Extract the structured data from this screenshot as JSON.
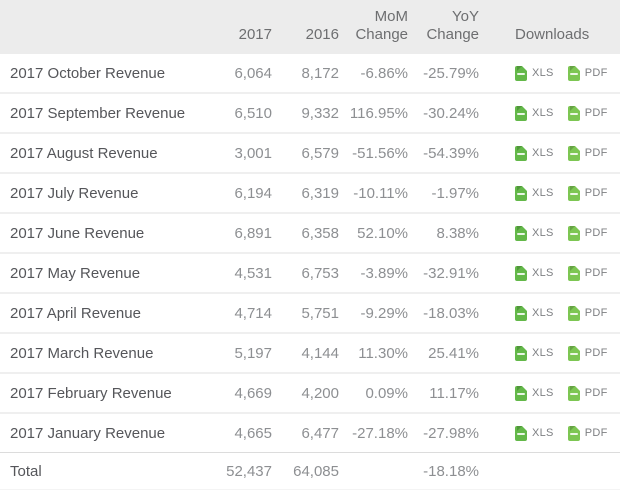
{
  "header": {
    "col_label": "",
    "col_2017": "2017",
    "col_2016": "2016",
    "col_mom": "MoM\nChange",
    "col_yoy": "YoY\nChange",
    "col_downloads": "Downloads"
  },
  "downloads": {
    "xls_label": "XLS",
    "pdf_label": "PDF"
  },
  "rows": [
    {
      "label": "2017 October Revenue",
      "y2017": "6,064",
      "y2016": "8,172",
      "mom": "-6.86%",
      "yoy": "-25.79%"
    },
    {
      "label": "2017 September Revenue",
      "y2017": "6,510",
      "y2016": "9,332",
      "mom": "116.95%",
      "yoy": "-30.24%"
    },
    {
      "label": "2017 August Revenue",
      "y2017": "3,001",
      "y2016": "6,579",
      "mom": "-51.56%",
      "yoy": "-54.39%"
    },
    {
      "label": "2017 July Revenue",
      "y2017": "6,194",
      "y2016": "6,319",
      "mom": "-10.11%",
      "yoy": "-1.97%"
    },
    {
      "label": "2017 June Revenue",
      "y2017": "6,891",
      "y2016": "6,358",
      "mom": "52.10%",
      "yoy": "8.38%"
    },
    {
      "label": "2017 May Revenue",
      "y2017": "4,531",
      "y2016": "6,753",
      "mom": "-3.89%",
      "yoy": "-32.91%"
    },
    {
      "label": "2017 April Revenue",
      "y2017": "4,714",
      "y2016": "5,751",
      "mom": "-9.29%",
      "yoy": "-18.03%"
    },
    {
      "label": "2017 March Revenue",
      "y2017": "5,197",
      "y2016": "4,144",
      "mom": "11.30%",
      "yoy": "25.41%"
    },
    {
      "label": "2017 February Revenue",
      "y2017": "4,669",
      "y2016": "4,200",
      "mom": "0.09%",
      "yoy": "11.17%"
    },
    {
      "label": "2017 January Revenue",
      "y2017": "4,665",
      "y2016": "6,477",
      "mom": "-27.18%",
      "yoy": "-27.98%"
    }
  ],
  "total": {
    "label": "Total",
    "y2017": "52,437",
    "y2016": "64,085",
    "mom": "",
    "yoy": "-18.18%"
  },
  "colors": {
    "header_bg": "#ececec",
    "xls_icon_green": "#63b849",
    "pdf_icon_green": "#7dc653",
    "row_separator": "#efefef",
    "label_text": "#55565a",
    "number_text": "#8d8f92",
    "header_text": "#6d6e70"
  }
}
